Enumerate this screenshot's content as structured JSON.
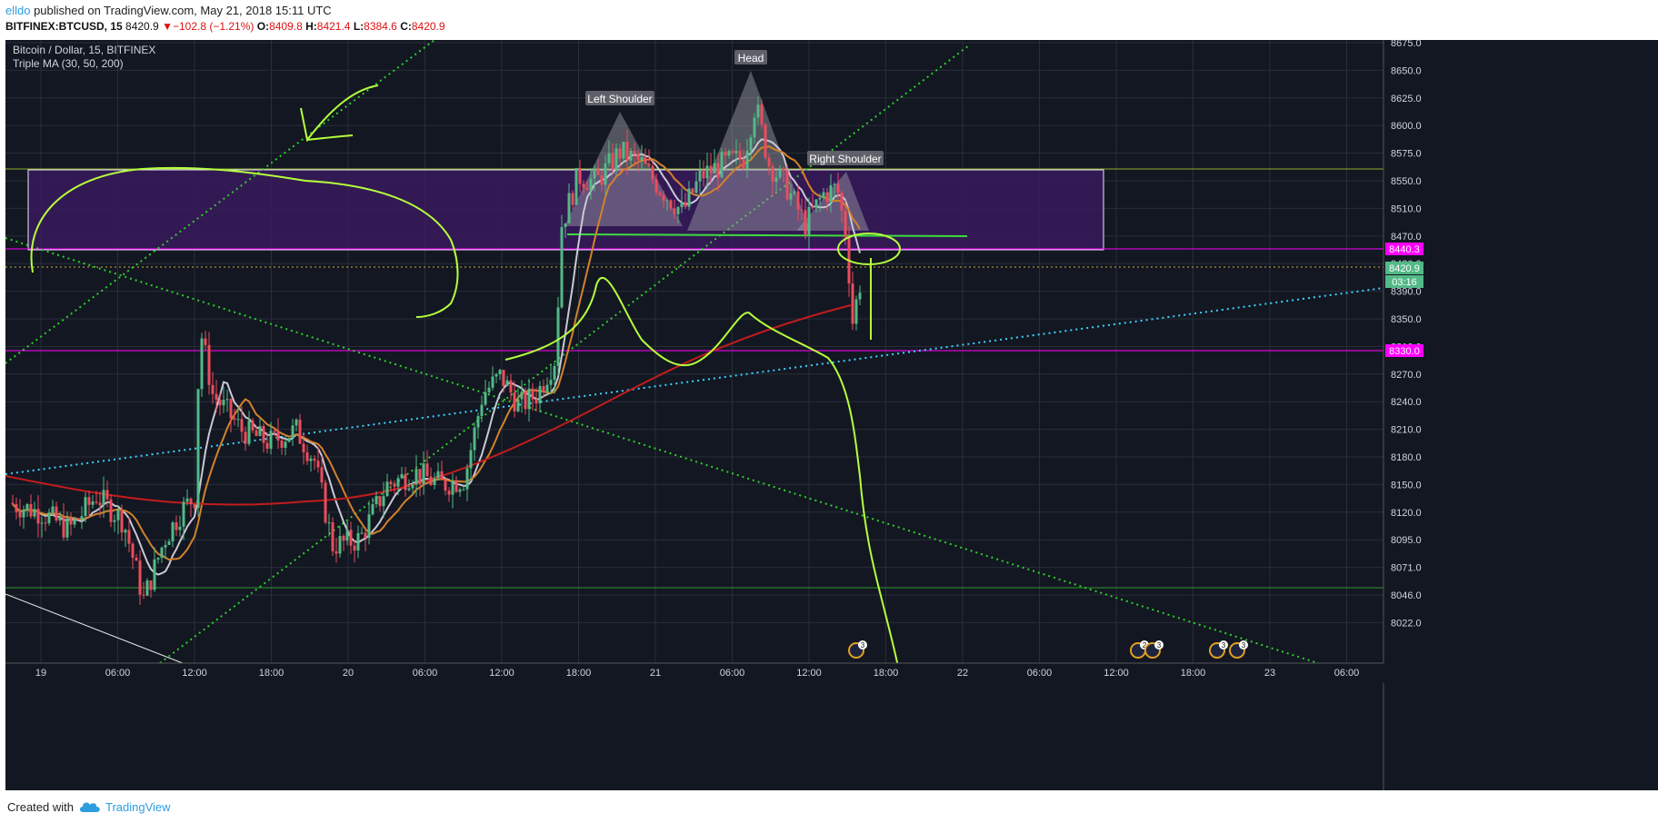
{
  "header": {
    "user": "elldo",
    "published": " published on TradingView.com, May 21, 2018 15:11 UTC",
    "symbol": "BITFINEX:BTCUSD, 15",
    "last": "8420.9",
    "arrow": "▼",
    "change": "−102.8 (−1.21%)",
    "o_label": "O:",
    "o_value": "8409.8",
    "h_label": "H:",
    "h_value": "8421.4",
    "l_label": "L:",
    "l_value": "8384.6",
    "c_label": "C:",
    "c_value": "8420.9"
  },
  "footer": {
    "created": "Created with",
    "brand": "TradingView",
    "logo_icon": "tradingview-cloud-icon"
  },
  "colors": {
    "background": "#131722",
    "grid": "#2a2e39",
    "up": "#53b987",
    "down": "#eb4d5c",
    "ma30": "#c9c9d6",
    "ma50": "#d2822c",
    "ma200": "#c21c1c",
    "zone_fill": "#3a1a5c",
    "magenta": "#ff00ff",
    "lime": "#b5ff3c",
    "green_dots": "#2bd12b",
    "cyan_dots": "#3cd3ff"
  },
  "chart_data": {
    "type": "candlestick",
    "title": "Bitcoin / Dollar, 15, BITFINEX",
    "indicator": "Triple MA (30, 50, 200)",
    "y_range": [
      8000,
      8680
    ],
    "y_ticks": [
      "8675.0",
      "8650.0",
      "8625.0",
      "8600.0",
      "8575.0",
      "8550.0",
      "8510.0",
      "8470.0",
      "8430.0",
      "8390.0",
      "8350.0",
      "8310.0",
      "8270.0",
      "8240.0",
      "8210.0",
      "8180.0",
      "8150.0",
      "8120.0",
      "8095.0",
      "8071.0",
      "8046.0",
      "8022.0"
    ],
    "x_ticks": [
      "19",
      "06:00",
      "12:00",
      "18:00",
      "20",
      "06:00",
      "12:00",
      "18:00",
      "21",
      "06:00",
      "12:00",
      "18:00",
      "22",
      "06:00",
      "12:00",
      "18:00",
      "23",
      "06:00"
    ],
    "price_labels": [
      {
        "text": "8440.3",
        "value": 8440.3,
        "color": "#ff00ff"
      },
      {
        "text": "8420.9",
        "value": 8420.9,
        "color": "#53b987"
      },
      {
        "text": "03:16",
        "value": 8404,
        "color": "#53b987"
      },
      {
        "text": "8330.0",
        "value": 8330.0,
        "color": "#ff00ff"
      }
    ],
    "hlines": [
      {
        "value": 8440.3,
        "color": "#ff00ff"
      },
      {
        "value": 8330.0,
        "color": "#ff00ff"
      },
      {
        "value": 8528,
        "color": "#8faf2c"
      },
      {
        "value": 8082,
        "color": "#2c9a2c"
      }
    ],
    "zone": {
      "top": 8528,
      "bottom": 8440
    },
    "annotations": [
      "Left Shoulder",
      "Head",
      "Right Shoulder"
    ],
    "key_prices": {
      "start_close": 8240,
      "low_19": 8150,
      "spike_19_12h": 8385,
      "low_20": 8190,
      "rally_20_15h": 8470,
      "left_shoulder": 8590,
      "head": 8640,
      "right_shoulder": 8525,
      "neckline": 8460,
      "drop_low": 8360,
      "last_close": 8420.9
    },
    "events": [
      "3",
      "2",
      "3",
      "3",
      "3"
    ]
  }
}
